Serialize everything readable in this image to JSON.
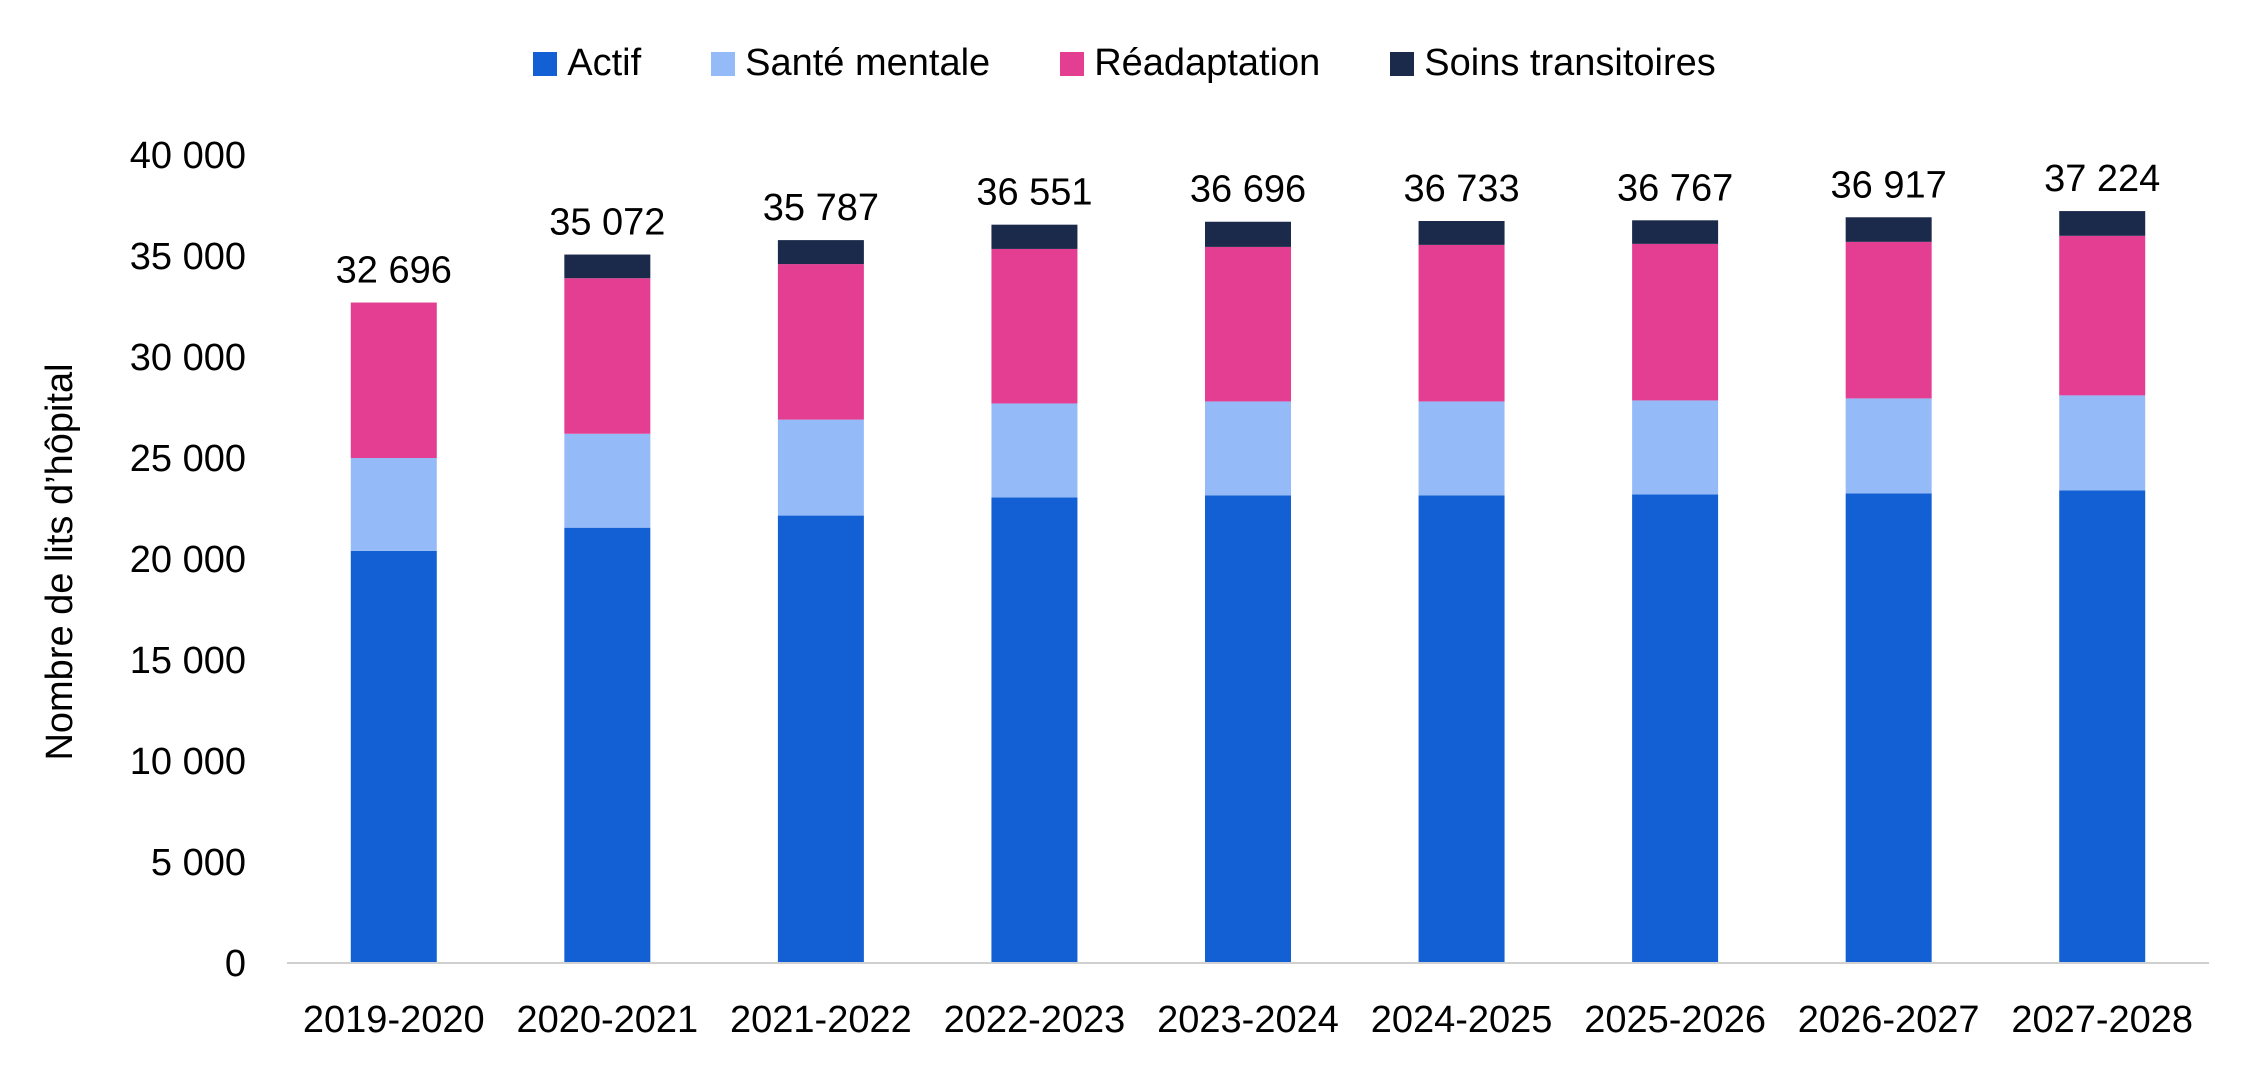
{
  "chart_data": {
    "type": "bar",
    "stacked": true,
    "ylabel": "Nombre de lits d’hôpital",
    "xlabel": "",
    "ylim": [
      0,
      40000
    ],
    "yticks": [
      0,
      5000,
      10000,
      15000,
      20000,
      25000,
      30000,
      35000,
      40000
    ],
    "ytick_labels": [
      "0",
      "5 000",
      "10 000",
      "15 000",
      "20 000",
      "25 000",
      "30 000",
      "35 000",
      "40 000"
    ],
    "legend_position": "top-center",
    "grid": false,
    "categories": [
      "2019-2020",
      "2020-2021",
      "2021-2022",
      "2022-2023",
      "2023-2024",
      "2024-2025",
      "2025-2026",
      "2026-2027",
      "2027-2028"
    ],
    "series": [
      {
        "name": "Actif",
        "color": "#1360d5",
        "values": [
          20400,
          21550,
          22150,
          23050,
          23150,
          23150,
          23200,
          23250,
          23400
        ]
      },
      {
        "name": "Santé mentale",
        "color": "#94bbf7",
        "values": [
          4600,
          4650,
          4750,
          4650,
          4650,
          4650,
          4650,
          4700,
          4700
        ]
      },
      {
        "name": "Réadaptation",
        "color": "#e43e92",
        "values": [
          7696,
          7700,
          7700,
          7650,
          7650,
          7750,
          7750,
          7750,
          7900
        ]
      },
      {
        "name": "Soins transitoires",
        "color": "#1b2a4a",
        "values": [
          0,
          1172,
          1187,
          1201,
          1246,
          1183,
          1167,
          1217,
          1224
        ]
      }
    ],
    "totals": [
      32696,
      35072,
      35787,
      36551,
      36696,
      36733,
      36767,
      36917,
      37224
    ],
    "total_labels": [
      "32 696",
      "35 072",
      "35 787",
      "36 551",
      "36 696",
      "36 733",
      "36 767",
      "36 917",
      "37 224"
    ]
  }
}
